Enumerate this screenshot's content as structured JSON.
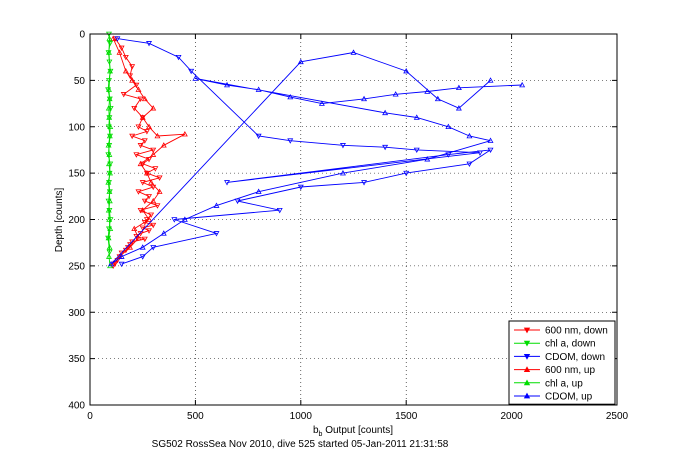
{
  "chart_data": {
    "type": "scatter",
    "title": "",
    "xlabel_main": "b",
    "xlabel_sub": "b",
    "xlabel_rest": " Output [counts]",
    "ylabel": "Depth [counts]",
    "caption": "SG502 RossSea Nov 2010, dive 525 started 05-Jan-2011 21:31:58",
    "xlim": [
      0,
      2500
    ],
    "ylim": [
      0,
      400
    ],
    "y_reversed": true,
    "grid": true,
    "x_ticks": [
      0,
      500,
      1000,
      1500,
      2000,
      2500
    ],
    "y_ticks": [
      0,
      50,
      100,
      150,
      200,
      250,
      300,
      350,
      400
    ],
    "x_tick_labels": [
      "0",
      "500",
      "1000",
      "1500",
      "2000",
      "2500"
    ],
    "y_tick_labels": [
      "0",
      "50",
      "100",
      "150",
      "200",
      "250",
      "300",
      "350",
      "400"
    ],
    "legend_position": "bottom-right",
    "series": [
      {
        "name": "600 nm, down",
        "color": "#ff0000",
        "marker": "triangle-down",
        "x": [
          120,
          150,
          170,
          200,
          190,
          220,
          160,
          240,
          210,
          250,
          230,
          270,
          200,
          260,
          240,
          300,
          220,
          280,
          250,
          310,
          270,
          330,
          250,
          300,
          230,
          280,
          260,
          320,
          240,
          290,
          270,
          260,
          300,
          250,
          280,
          240,
          220,
          260,
          200,
          190,
          180,
          170,
          150,
          140,
          130,
          120,
          110
        ],
        "y": [
          5,
          15,
          25,
          35,
          45,
          55,
          65,
          70,
          80,
          90,
          100,
          105,
          110,
          115,
          120,
          125,
          130,
          135,
          140,
          145,
          150,
          155,
          160,
          165,
          170,
          175,
          180,
          185,
          190,
          195,
          200,
          203,
          206,
          209,
          212,
          215,
          218,
          221,
          224,
          227,
          230,
          233,
          236,
          240,
          244,
          247,
          250
        ]
      },
      {
        "name": "chl a, down",
        "color": "#00dd00",
        "marker": "triangle-down",
        "x": [
          90,
          95,
          88,
          92,
          97,
          90,
          86,
          94,
          98,
          92,
          89,
          95,
          91,
          87,
          96,
          93,
          90,
          94,
          88,
          92,
          97,
          90,
          86,
          93
        ],
        "y": [
          0,
          10,
          20,
          30,
          40,
          50,
          60,
          70,
          80,
          90,
          100,
          110,
          120,
          130,
          140,
          150,
          160,
          170,
          180,
          190,
          200,
          210,
          220,
          235
        ]
      },
      {
        "name": "CDOM, down",
        "color": "#0000ff",
        "marker": "triangle-down",
        "x": [
          130,
          280,
          420,
          480,
          800,
          950,
          1200,
          1400,
          1550,
          1850,
          650,
          1700,
          1900,
          1800,
          1500,
          1300,
          1000,
          700,
          900,
          400,
          600,
          300,
          250,
          150
        ],
        "y": [
          5,
          10,
          25,
          40,
          110,
          115,
          120,
          122,
          125,
          128,
          160,
          130,
          125,
          140,
          150,
          160,
          165,
          180,
          190,
          200,
          215,
          230,
          240,
          248
        ]
      },
      {
        "name": "600 nm, up",
        "color": "#ff0000",
        "marker": "triangle-up",
        "x": [
          110,
          140,
          190,
          230,
          210,
          280,
          250,
          300,
          330,
          290,
          270,
          240,
          300,
          350,
          450,
          320,
          280,
          250,
          300,
          260,
          230,
          200,
          170,
          140,
          110
        ],
        "y": [
          248,
          240,
          230,
          220,
          210,
          200,
          190,
          180,
          170,
          160,
          150,
          140,
          130,
          120,
          108,
          110,
          100,
          90,
          80,
          70,
          60,
          50,
          40,
          20,
          5
        ]
      },
      {
        "name": "chl a, up",
        "color": "#00dd00",
        "marker": "triangle-up",
        "x": [
          95,
          90,
          93,
          88,
          96,
          91,
          89,
          94,
          92,
          87,
          95,
          90,
          92,
          88,
          94,
          96,
          91,
          89,
          93,
          90,
          95,
          90,
          92
        ],
        "y": [
          250,
          240,
          230,
          220,
          210,
          200,
          190,
          180,
          170,
          160,
          150,
          140,
          130,
          120,
          110,
          100,
          90,
          80,
          70,
          60,
          40,
          20,
          5
        ]
      },
      {
        "name": "CDOM, up",
        "color": "#0000ff",
        "marker": "triangle-up",
        "x": [
          2050,
          1750,
          1600,
          1450,
          1300,
          1100,
          950,
          800,
          650,
          500,
          1400,
          1550,
          1700,
          1800,
          1900,
          1600,
          1200,
          800,
          600,
          450,
          350,
          250,
          150,
          100,
          1000,
          1250,
          1500,
          1650,
          1750,
          1900
        ],
        "y": [
          55,
          58,
          62,
          65,
          70,
          75,
          68,
          60,
          55,
          48,
          85,
          90,
          100,
          110,
          115,
          135,
          150,
          170,
          185,
          200,
          215,
          230,
          240,
          248,
          30,
          20,
          40,
          70,
          80,
          50
        ]
      }
    ]
  }
}
